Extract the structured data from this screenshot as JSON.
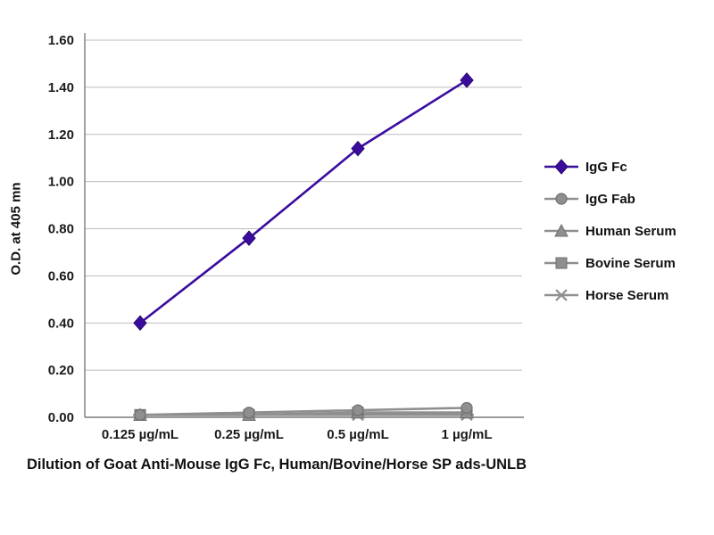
{
  "chart_data": {
    "type": "line",
    "title": "Dilution of Goat Anti-Mouse IgG Fc, Human/Bovine/Horse SP ads-UNLB",
    "ylabel": "O.D. at 405 mn",
    "xlabel": "",
    "categories": [
      "0.125 µg/mL",
      "0.25 µg/mL",
      "0.5 µg/mL",
      "1 µg/mL"
    ],
    "ylim": [
      0,
      1.6
    ],
    "ytick_step": 0.2,
    "grid": true,
    "legend_position": "right",
    "colors": {
      "primary_series": "#3a0c9e",
      "control_series": "#8f8f8f",
      "gridline": "#bdbdbd",
      "axis": "#7a7a7a"
    },
    "series": [
      {
        "name": "IgG Fc",
        "marker": "diamond",
        "color": "#3a0c9e",
        "values": [
          0.4,
          0.76,
          1.14,
          1.43
        ]
      },
      {
        "name": "IgG Fab",
        "marker": "circle",
        "color": "#8f8f8f",
        "values": [
          0.01,
          0.02,
          0.03,
          0.04
        ]
      },
      {
        "name": "Human Serum",
        "marker": "triangle",
        "color": "#8f8f8f",
        "values": [
          0.01,
          0.01,
          0.02,
          0.02
        ]
      },
      {
        "name": "Bovine Serum",
        "marker": "square",
        "color": "#8f8f8f",
        "values": [
          0.01,
          0.01,
          0.02,
          0.02
        ]
      },
      {
        "name": "Horse Serum",
        "marker": "star",
        "color": "#8f8f8f",
        "values": [
          0.01,
          0.01,
          0.01,
          0.01
        ]
      }
    ]
  }
}
